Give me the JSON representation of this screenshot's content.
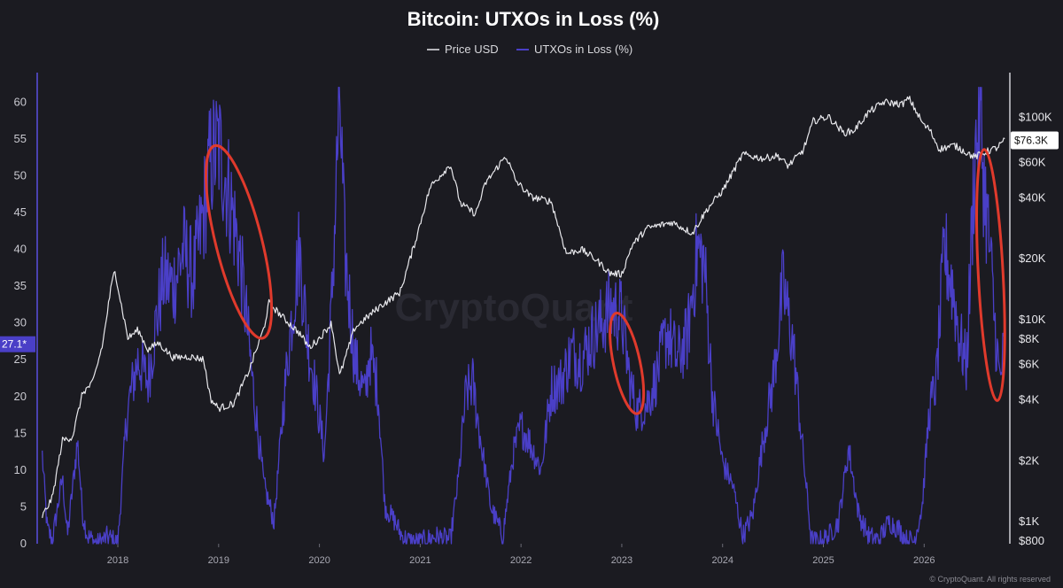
{
  "chart_data": {
    "type": "line",
    "title": "Bitcoin: UTXOs in Loss (%)",
    "series": [
      {
        "name": "Price USD",
        "axis": "right",
        "color": "#e8e8ec",
        "scale": "log",
        "points": [
          [
            2017.25,
            1050
          ],
          [
            2017.35,
            1300
          ],
          [
            2017.45,
            2500
          ],
          [
            2017.55,
            2600
          ],
          [
            2017.65,
            4300
          ],
          [
            2017.75,
            4800
          ],
          [
            2017.85,
            7500
          ],
          [
            2017.93,
            14000
          ],
          [
            2017.97,
            17500
          ],
          [
            2018.03,
            12000
          ],
          [
            2018.1,
            8000
          ],
          [
            2018.2,
            8800
          ],
          [
            2018.3,
            7000
          ],
          [
            2018.4,
            7600
          ],
          [
            2018.55,
            6400
          ],
          [
            2018.7,
            6500
          ],
          [
            2018.85,
            6300
          ],
          [
            2018.92,
            4000
          ],
          [
            2019.0,
            3600
          ],
          [
            2019.15,
            3800
          ],
          [
            2019.3,
            5500
          ],
          [
            2019.45,
            9000
          ],
          [
            2019.5,
            12000
          ],
          [
            2019.65,
            10000
          ],
          [
            2019.8,
            8500
          ],
          [
            2019.9,
            7200
          ],
          [
            2020.0,
            8000
          ],
          [
            2020.12,
            9500
          ],
          [
            2020.2,
            5200
          ],
          [
            2020.35,
            9000
          ],
          [
            2020.6,
            11500
          ],
          [
            2020.8,
            13500
          ],
          [
            2020.95,
            24000
          ],
          [
            2021.1,
            45000
          ],
          [
            2021.3,
            58000
          ],
          [
            2021.4,
            37000
          ],
          [
            2021.55,
            33000
          ],
          [
            2021.65,
            47000
          ],
          [
            2021.85,
            64000
          ],
          [
            2021.95,
            48000
          ],
          [
            2022.1,
            40000
          ],
          [
            2022.3,
            38000
          ],
          [
            2022.45,
            21000
          ],
          [
            2022.6,
            22000
          ],
          [
            2022.75,
            19500
          ],
          [
            2022.88,
            16800
          ],
          [
            2023.0,
            16600
          ],
          [
            2023.1,
            23000
          ],
          [
            2023.25,
            28000
          ],
          [
            2023.5,
            30000
          ],
          [
            2023.7,
            26500
          ],
          [
            2023.85,
            35000
          ],
          [
            2024.0,
            43000
          ],
          [
            2024.2,
            65000
          ],
          [
            2024.4,
            62000
          ],
          [
            2024.55,
            64000
          ],
          [
            2024.65,
            57000
          ],
          [
            2024.8,
            68000
          ],
          [
            2024.9,
            95000
          ],
          [
            2025.05,
            100000
          ],
          [
            2025.2,
            83000
          ],
          [
            2025.3,
            85000
          ],
          [
            2025.45,
            105000
          ],
          [
            2025.6,
            118000
          ],
          [
            2025.78,
            115000
          ],
          [
            2025.85,
            123000
          ],
          [
            2026.0,
            90000
          ],
          [
            2026.05,
            87000
          ],
          [
            2026.15,
            69000
          ],
          [
            2026.3,
            72000
          ],
          [
            2026.5,
            63000
          ],
          [
            2026.65,
            68000
          ],
          [
            2026.72,
            70000
          ],
          [
            2026.8,
            76300
          ]
        ]
      },
      {
        "name": "UTXOs in Loss (%)",
        "axis": "left",
        "color": "#4a3fc7",
        "points": [
          [
            2017.25,
            12
          ],
          [
            2017.3,
            2
          ],
          [
            2017.35,
            0.5
          ],
          [
            2017.45,
            9
          ],
          [
            2017.5,
            1
          ],
          [
            2017.6,
            14
          ],
          [
            2017.65,
            4
          ],
          [
            2017.7,
            1
          ],
          [
            2017.8,
            0
          ],
          [
            2017.9,
            1
          ],
          [
            2018.0,
            0
          ],
          [
            2018.08,
            16
          ],
          [
            2018.12,
            20
          ],
          [
            2018.2,
            25
          ],
          [
            2018.3,
            22
          ],
          [
            2018.38,
            30
          ],
          [
            2018.45,
            36
          ],
          [
            2018.55,
            35
          ],
          [
            2018.65,
            40
          ],
          [
            2018.75,
            36
          ],
          [
            2018.85,
            45
          ],
          [
            2018.92,
            52
          ],
          [
            2019.0,
            54
          ],
          [
            2019.1,
            48
          ],
          [
            2019.2,
            40
          ],
          [
            2019.28,
            30
          ],
          [
            2019.35,
            20
          ],
          [
            2019.45,
            8
          ],
          [
            2019.55,
            3
          ],
          [
            2019.65,
            20
          ],
          [
            2019.72,
            30
          ],
          [
            2019.8,
            40
          ],
          [
            2019.88,
            28
          ],
          [
            2019.95,
            22
          ],
          [
            2020.05,
            12
          ],
          [
            2020.12,
            32
          ],
          [
            2020.2,
            61
          ],
          [
            2020.25,
            40
          ],
          [
            2020.35,
            25
          ],
          [
            2020.45,
            20
          ],
          [
            2020.5,
            26
          ],
          [
            2020.58,
            21
          ],
          [
            2020.65,
            5
          ],
          [
            2020.75,
            3
          ],
          [
            2020.82,
            1
          ],
          [
            2020.9,
            0.3
          ],
          [
            2021.0,
            0.2
          ],
          [
            2021.15,
            1
          ],
          [
            2021.3,
            0.5
          ],
          [
            2021.38,
            9
          ],
          [
            2021.45,
            20
          ],
          [
            2021.52,
            22
          ],
          [
            2021.6,
            14
          ],
          [
            2021.7,
            5
          ],
          [
            2021.82,
            1
          ],
          [
            2021.92,
            12
          ],
          [
            2022.0,
            16
          ],
          [
            2022.08,
            14
          ],
          [
            2022.2,
            10
          ],
          [
            2022.3,
            21
          ],
          [
            2022.4,
            22
          ],
          [
            2022.5,
            26
          ],
          [
            2022.6,
            25
          ],
          [
            2022.7,
            28
          ],
          [
            2022.8,
            30
          ],
          [
            2022.88,
            32
          ],
          [
            2023.0,
            31
          ],
          [
            2023.08,
            22
          ],
          [
            2023.15,
            18
          ],
          [
            2023.25,
            19
          ],
          [
            2023.35,
            23
          ],
          [
            2023.45,
            29
          ],
          [
            2023.55,
            25
          ],
          [
            2023.65,
            28
          ],
          [
            2023.75,
            40
          ],
          [
            2023.82,
            38
          ],
          [
            2023.9,
            20
          ],
          [
            2024.0,
            11
          ],
          [
            2024.1,
            8
          ],
          [
            2024.2,
            1
          ],
          [
            2024.3,
            4
          ],
          [
            2024.4,
            14
          ],
          [
            2024.5,
            22
          ],
          [
            2024.6,
            35
          ],
          [
            2024.7,
            27
          ],
          [
            2024.8,
            12
          ],
          [
            2024.88,
            0.5
          ],
          [
            2024.95,
            0.2
          ],
          [
            2025.05,
            1
          ],
          [
            2025.15,
            3
          ],
          [
            2025.25,
            13
          ],
          [
            2025.35,
            4
          ],
          [
            2025.45,
            1
          ],
          [
            2025.55,
            0.5
          ],
          [
            2025.65,
            3
          ],
          [
            2025.75,
            2
          ],
          [
            2025.82,
            0.5
          ],
          [
            2025.9,
            0.4
          ],
          [
            2025.98,
            5
          ],
          [
            2026.05,
            18
          ],
          [
            2026.12,
            22
          ],
          [
            2026.2,
            40
          ],
          [
            2026.28,
            35
          ],
          [
            2026.35,
            28
          ],
          [
            2026.42,
            24
          ],
          [
            2026.5,
            52
          ],
          [
            2026.55,
            59
          ],
          [
            2026.6,
            48
          ],
          [
            2026.65,
            40
          ],
          [
            2026.7,
            30
          ],
          [
            2026.75,
            22
          ],
          [
            2026.8,
            27.1
          ]
        ]
      }
    ],
    "left_axis": {
      "ylim": [
        0,
        64
      ],
      "ticks": [
        "0",
        "5",
        "10",
        "15",
        "20",
        "25",
        "30",
        "35",
        "40",
        "45",
        "50",
        "55",
        "60"
      ],
      "current_value_label": "27.1*",
      "current_value": 27.1
    },
    "right_axis": {
      "scale": "log",
      "ylim": [
        770,
        165000
      ],
      "ticks": [
        {
          "label": "$800",
          "value": 800
        },
        {
          "label": "$1K",
          "value": 1000
        },
        {
          "label": "$2K",
          "value": 2000
        },
        {
          "label": "$4K",
          "value": 4000
        },
        {
          "label": "$6K",
          "value": 6000
        },
        {
          "label": "$8K",
          "value": 8000
        },
        {
          "label": "$10K",
          "value": 10000
        },
        {
          "label": "$20K",
          "value": 20000
        },
        {
          "label": "$40K",
          "value": 40000
        },
        {
          "label": "$60K",
          "value": 60000
        },
        {
          "label": "$100K",
          "value": 100000
        }
      ],
      "current_value_label": "$76.3K",
      "current_value": 76300
    },
    "x_axis": {
      "xlim": [
        2017.2,
        2026.85
      ],
      "ticks": [
        "2018",
        "2019",
        "2020",
        "2021",
        "2022",
        "2023",
        "2024",
        "2025",
        "2026"
      ]
    },
    "highlights": [
      {
        "color": "#e03a2c",
        "x_center": 2019.2,
        "y_center": 41
      },
      {
        "color": "#e03a2c",
        "x_center": 2023.05,
        "y_center": 24.5
      },
      {
        "color": "#e03a2c",
        "x_center": 2026.66,
        "y_center": 36.5
      }
    ],
    "watermark": "CryptoQuant",
    "copyright": "© CryptoQuant. All rights reserved",
    "legend_placement": "top-center",
    "grid": false
  }
}
